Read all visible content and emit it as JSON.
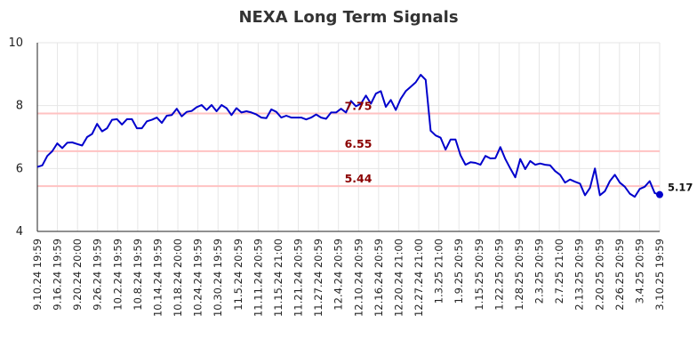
{
  "chart_data": {
    "type": "line",
    "title": "NEXA Long Term Signals",
    "xlabel": "",
    "ylabel": "",
    "ylim": [
      4,
      10
    ],
    "yticks": [
      4,
      6,
      8,
      10
    ],
    "grid": true,
    "x_tick_labels": [
      "9.10.24 19:59",
      "9.16.24 19:59",
      "9.20.24 20:00",
      "9.26.24 19:59",
      "10.2.24 19:59",
      "10.8.24 19:59",
      "10.14.24 19:59",
      "10.18.24 20:00",
      "10.24.24 19:59",
      "10.30.24 19:59",
      "11.5.24 20:59",
      "11.11.24 20:59",
      "11.15.24 21:00",
      "11.21.24 20:59",
      "11.27.24 20:59",
      "12.4.24 20:59",
      "12.10.24 20:59",
      "12.16.24 20:59",
      "12.20.24 21:00",
      "12.27.24 21:00",
      "1.3.25 21:00",
      "1.9.25 20:59",
      "1.15.25 20:59",
      "1.22.25 20:59",
      "1.28.25 20:59",
      "2.3.25 20:59",
      "2.7.25 21:00",
      "2.13.25 20:59",
      "2.20.25 20:59",
      "2.26.25 20:59",
      "3.4.25 20:59",
      "3.10.25 19:59"
    ],
    "series": [
      {
        "color": "#0000cc",
        "values": [
          6.05,
          6.1,
          6.4,
          6.55,
          6.8,
          6.65,
          6.82,
          6.83,
          6.78,
          6.73,
          7.0,
          7.1,
          7.42,
          7.18,
          7.28,
          7.55,
          7.57,
          7.4,
          7.57,
          7.57,
          7.28,
          7.28,
          7.5,
          7.55,
          7.62,
          7.45,
          7.68,
          7.7,
          7.9,
          7.66,
          7.8,
          7.83,
          7.95,
          8.02,
          7.86,
          8.02,
          7.82,
          8.02,
          7.92,
          7.7,
          7.92,
          7.78,
          7.82,
          7.78,
          7.72,
          7.62,
          7.6,
          7.88,
          7.8,
          7.62,
          7.68,
          7.62,
          7.62,
          7.62,
          7.56,
          7.62,
          7.72,
          7.62,
          7.58,
          7.78,
          7.78,
          7.9,
          7.78,
          8.15,
          7.98,
          8.06,
          8.32,
          8.06,
          8.38,
          8.46,
          7.96,
          8.18,
          7.86,
          8.22,
          8.46,
          8.6,
          8.74,
          8.98,
          8.82,
          7.2,
          7.05,
          6.98,
          6.6,
          6.92,
          6.92,
          6.42,
          6.12,
          6.2,
          6.18,
          6.12,
          6.4,
          6.32,
          6.33,
          6.68,
          6.3,
          6.0,
          5.72,
          6.3,
          5.98,
          6.24,
          6.12,
          6.16,
          6.12,
          6.1,
          5.92,
          5.8,
          5.55,
          5.65,
          5.58,
          5.52,
          5.15,
          5.38,
          6.0,
          5.15,
          5.28,
          5.6,
          5.8,
          5.55,
          5.42,
          5.2,
          5.1,
          5.35,
          5.42,
          5.6,
          5.22,
          5.17
        ]
      }
    ],
    "levels": [
      {
        "value": 7.75,
        "label": "7.75",
        "color": "#ffcccc"
      },
      {
        "value": 6.55,
        "label": "6.55",
        "color": "#ffcccc"
      },
      {
        "value": 5.44,
        "label": "5.44",
        "color": "#ffcccc"
      }
    ],
    "last_value": 5.17,
    "last_label": "5.17",
    "colors": {
      "line": "#0000cc",
      "level_text": "#8b0000",
      "grid": "#e6e6e6",
      "level_line": "#ffc2c2"
    }
  }
}
